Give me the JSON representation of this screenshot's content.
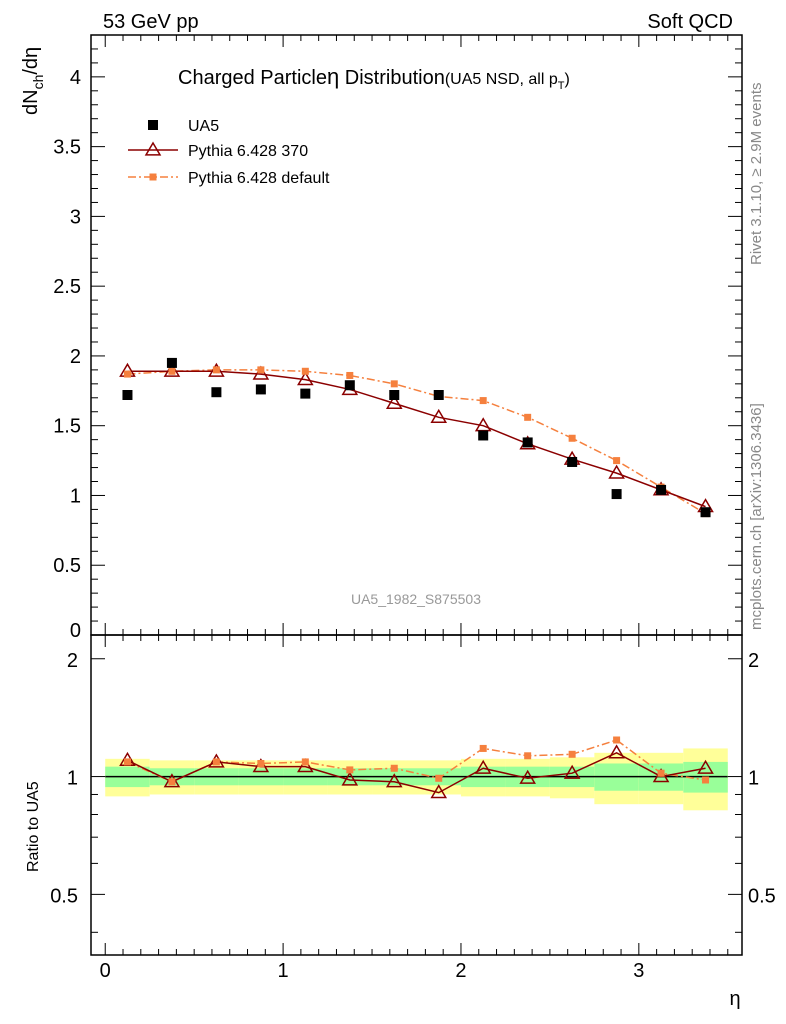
{
  "header": {
    "left": "53 GeV pp",
    "right": "Soft QCD"
  },
  "side_text": {
    "rivet": "Rivet 3.1.10, ≥ 2.9M events",
    "mcplots": "mcplots.cern.ch [arXiv:1306.3436]"
  },
  "chart_data": {
    "type": "scatter",
    "title_main": "Charged Particle",
    "title_eta": "η",
    "title_rest": " Distribution",
    "title_sub": "(UA5 NSD, all p",
    "title_sub_sub": "T",
    "title_sub_close": ")",
    "ylabel_main": "dN",
    "ylabel_sub": "ch",
    "ylabel_rest": "/dη",
    "ratio_ylabel": "Ratio to UA5",
    "xlabel": "η",
    "watermark": "UA5_1982_S875503",
    "xlim": [
      -0.08,
      3.58
    ],
    "ylim": [
      0,
      4.3
    ],
    "ratio_ylim": [
      0.35,
      2.3
    ],
    "x_ticks": [
      "0",
      "1",
      "2",
      "3"
    ],
    "y_ticks": [
      "0.5",
      "1",
      "1.5",
      "2",
      "2.5",
      "3",
      "3.5",
      "4"
    ],
    "y_zero_tick": "0",
    "ratio_ticks": [
      "0.5",
      "1",
      "2"
    ],
    "x": [
      0.125,
      0.375,
      0.625,
      0.875,
      1.125,
      1.375,
      1.625,
      1.875,
      2.125,
      2.375,
      2.625,
      2.875,
      3.125,
      3.375
    ],
    "band_edges": [
      0,
      0.25,
      0.5,
      0.75,
      1.0,
      1.25,
      1.5,
      1.75,
      2.0,
      2.25,
      2.5,
      2.75,
      3.0,
      3.25,
      3.5
    ],
    "band_inner": [
      0.06,
      0.05,
      0.05,
      0.05,
      0.05,
      0.05,
      0.05,
      0.05,
      0.06,
      0.06,
      0.06,
      0.08,
      0.08,
      0.09
    ],
    "band_outer": [
      0.11,
      0.1,
      0.1,
      0.1,
      0.1,
      0.1,
      0.1,
      0.1,
      0.11,
      0.11,
      0.12,
      0.15,
      0.15,
      0.18
    ],
    "series": [
      {
        "name": "UA5",
        "color": "#000000",
        "marker": "square",
        "values": [
          1.72,
          1.95,
          1.74,
          1.76,
          1.73,
          1.79,
          1.72,
          1.72,
          1.43,
          1.38,
          1.24,
          1.01,
          1.04,
          0.88
        ]
      },
      {
        "name": "Pythia 6.428 370",
        "color": "#8b0000",
        "marker": "open-triangle",
        "line": "solid",
        "values": [
          1.89,
          1.89,
          1.89,
          1.87,
          1.83,
          1.76,
          1.66,
          1.56,
          1.5,
          1.37,
          1.26,
          1.16,
          1.04,
          0.92
        ]
      },
      {
        "name": "Pythia 6.428 default",
        "color": "#f5803e",
        "marker": "square-small",
        "line": "dashdot",
        "values": [
          1.87,
          1.89,
          1.9,
          1.9,
          1.89,
          1.86,
          1.8,
          1.71,
          1.68,
          1.56,
          1.41,
          1.25,
          1.06,
          0.87
        ]
      }
    ],
    "ratios": [
      {
        "name": "Pythia 6.428 370",
        "values": [
          1.1,
          0.97,
          1.09,
          1.06,
          1.06,
          0.98,
          0.97,
          0.91,
          1.05,
          0.99,
          1.02,
          1.15,
          1.0,
          1.05
        ]
      },
      {
        "name": "Pythia 6.428 default",
        "values": [
          1.09,
          0.97,
          1.09,
          1.08,
          1.09,
          1.04,
          1.05,
          0.99,
          1.18,
          1.13,
          1.14,
          1.24,
          1.02,
          0.98
        ]
      }
    ],
    "legend_position": "top-left"
  }
}
